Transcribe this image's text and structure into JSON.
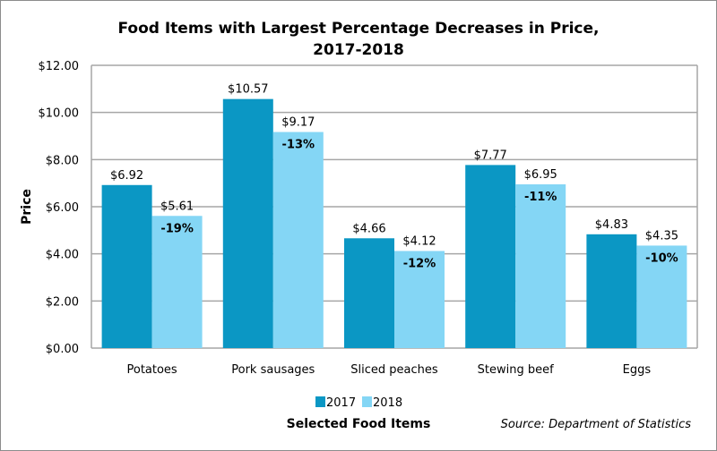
{
  "chart_data": {
    "type": "bar",
    "title": "Food Items with Largest Percentage Decreases in Price,",
    "title_line2": "2017-2018",
    "xlabel": "Selected Food Items",
    "ylabel": "Price",
    "ylim": [
      0,
      12
    ],
    "yticks": [
      0,
      2,
      4,
      6,
      8,
      10,
      12
    ],
    "ytick_labels": [
      "$0.00",
      "$2.00",
      "$4.00",
      "$6.00",
      "$8.00",
      "$10.00",
      "$12.00"
    ],
    "grid": true,
    "categories": [
      "Potatoes",
      "Pork sausages",
      "Sliced peaches",
      "Stewing beef",
      "Eggs"
    ],
    "series": [
      {
        "name": "2017",
        "color": "#0b97c4",
        "values": [
          6.92,
          10.57,
          4.66,
          7.77,
          4.83
        ],
        "labels": [
          "$6.92",
          "$10.57",
          "$4.66",
          "$7.77",
          "$4.83"
        ]
      },
      {
        "name": "2018",
        "color": "#84d6f5",
        "values": [
          5.61,
          9.17,
          4.12,
          6.95,
          4.35
        ],
        "labels": [
          "$5.61",
          "$9.17",
          "$4.12",
          "$6.95",
          "$4.35"
        ]
      }
    ],
    "change_labels": [
      "-19%",
      "-13%",
      "-12%",
      "-11%",
      "-10%"
    ],
    "legend_position": "bottom-center",
    "source": "Source: Department of Statistics"
  }
}
